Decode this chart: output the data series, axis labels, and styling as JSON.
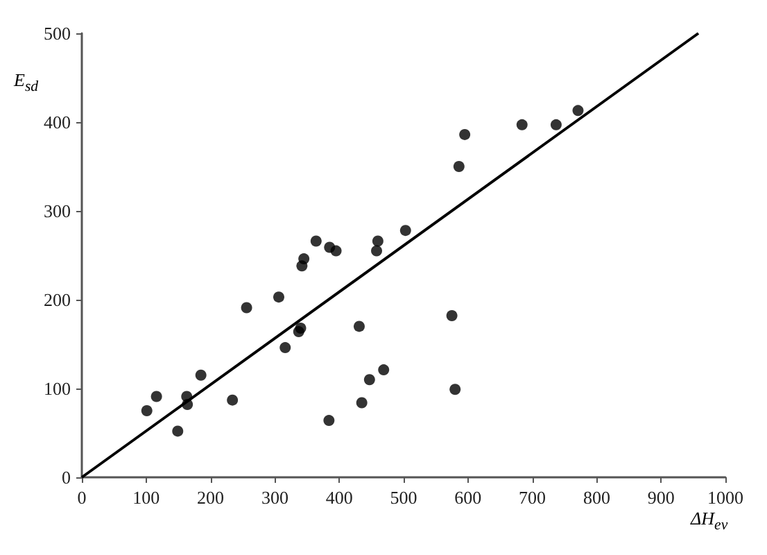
{
  "chart_data": {
    "type": "scatter",
    "xlabel": "ΔH$_{ev}$",
    "ylabel": "E$_{sd}$",
    "xlim": [
      0,
      1000
    ],
    "xticks": [
      0,
      100,
      200,
      300,
      400,
      500,
      600,
      700,
      800,
      900,
      1000
    ],
    "ylim": [
      0,
      500
    ],
    "yticks": [
      0,
      100,
      200,
      300,
      400,
      500
    ],
    "grid": false,
    "marker": "circle",
    "series": [
      {
        "color": "#000000",
        "x": [
          101,
          116,
          149,
          163,
          164,
          185,
          234,
          256,
          306,
          316,
          337,
          340,
          342,
          345,
          364,
          385,
          395,
          384,
          431,
          435,
          447,
          458,
          460,
          469,
          503,
          575,
          580,
          586,
          595,
          684,
          737,
          771
        ],
        "values": [
          75,
          91,
          52,
          91,
          82,
          115,
          87,
          191,
          203,
          146,
          164,
          168,
          238,
          246,
          266,
          259,
          255,
          64,
          170,
          84,
          110,
          255,
          266,
          121,
          278,
          182,
          99,
          350,
          386,
          397,
          397,
          413
        ]
      },
      {
        "type": "line",
        "marker": "none",
        "color": "#000000",
        "x": [
          0,
          958
        ],
        "values": [
          0,
          500
        ]
      }
    ]
  }
}
